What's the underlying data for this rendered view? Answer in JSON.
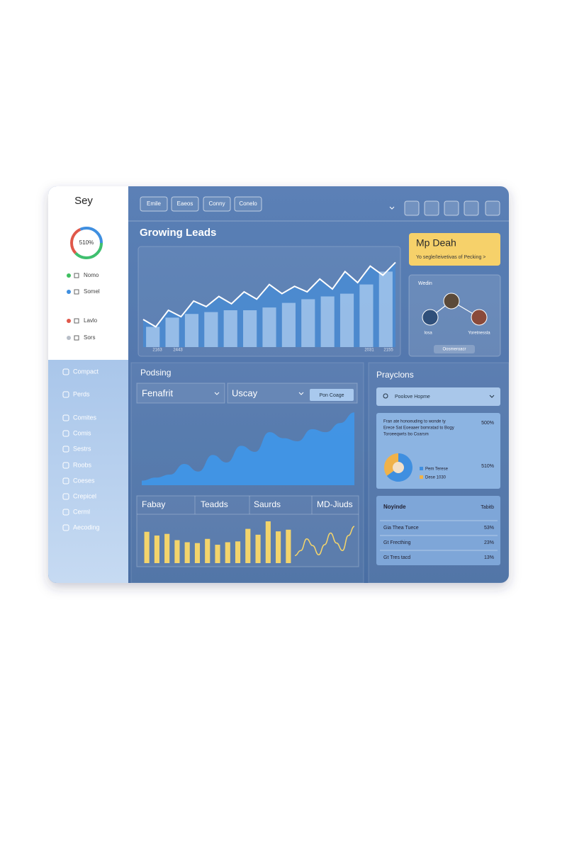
{
  "sidebar": {
    "brand": "Sey",
    "gauge_label": "510%",
    "nav_top": [
      {
        "label": "Nomo",
        "color": "#3fbf5f"
      },
      {
        "label": "Somel",
        "color": "#3f8fe0"
      },
      {
        "label": "Lavlo",
        "color": "#e0584a"
      },
      {
        "label": "Sors",
        "color": "#b8bec8"
      }
    ],
    "nav": [
      "Compact",
      "Perds",
      "Comites",
      "Comis",
      "Sestrs",
      "Roobs",
      "Coeses",
      "Crepicel",
      "Cerml",
      "Aecoding"
    ]
  },
  "toolbar": {
    "tabs": [
      "Emile",
      "Eaeos",
      "Conny",
      "Conelo"
    ]
  },
  "leads": {
    "title": "Growing Leads",
    "axis_labels": [
      "2163",
      "2443",
      "2031",
      "2155"
    ],
    "ylim": [
      0,
      100
    ],
    "bars": [
      22,
      32,
      36,
      38,
      40,
      40,
      43,
      48,
      52,
      55,
      58,
      68,
      82
    ],
    "line": [
      30,
      22,
      40,
      33,
      50,
      44,
      55,
      47,
      60,
      52,
      68,
      58,
      66,
      60,
      74,
      63,
      82,
      70,
      88,
      78,
      92
    ],
    "bar_color": "#a9c9ee",
    "area_color": "#3d8fe3",
    "line_color": "#ffffff"
  },
  "deal": {
    "title": "Mp Deah",
    "subtitle": "Yo segle/Ieivetivas of Pecking >"
  },
  "network": {
    "title": "Wedin",
    "nodes": [
      "Iosa",
      "Yoretnessla"
    ],
    "button": "Oosmeroacr"
  },
  "podsing": {
    "title": "Podsing",
    "dropdowns": [
      "Fenafrit",
      "Uscay"
    ],
    "button": "Pon Coage",
    "ylim": [
      0,
      100
    ],
    "area": [
      6,
      10,
      14,
      28,
      18,
      40,
      30,
      52,
      44,
      70,
      62,
      58,
      74,
      70,
      82,
      96
    ],
    "area_color": "#3f97ea",
    "tabs": [
      "Fabay",
      "Teadds",
      "Saurds",
      "MD-Jiuds"
    ],
    "bars": [
      75,
      66,
      70,
      55,
      50,
      48,
      58,
      44,
      50,
      52,
      82,
      68,
      100,
      76,
      80
    ],
    "bar_color": "#f3d46b",
    "wave": [
      18,
      30,
      58,
      42,
      20,
      44,
      72,
      48,
      30,
      66,
      88
    ],
    "wave_color": "#f3d46b"
  },
  "projections": {
    "title": "Prayclons",
    "search": "Poolove Hopme",
    "card_lines": [
      "Fran ate honoeuding to wonde ty",
      "Erece Sat Eoeaaer bomratad to Bogy",
      "Toroeeqwrts bo Coarsm"
    ],
    "card_values": [
      "500%",
      "510%"
    ],
    "donut": [
      {
        "label": "Pem Terese",
        "value": 65,
        "color": "#3f8fe0"
      },
      {
        "label": "Dese 1030",
        "value": 35,
        "color": "#f0b24a"
      }
    ],
    "table": {
      "header": [
        "Noyinde",
        "Tabitb"
      ],
      "rows": [
        [
          "Gia Thea Tuece",
          "53%"
        ],
        [
          "Gt Frecthing",
          "23%"
        ],
        [
          "Gt Tres tacd",
          "13%"
        ]
      ]
    }
  }
}
